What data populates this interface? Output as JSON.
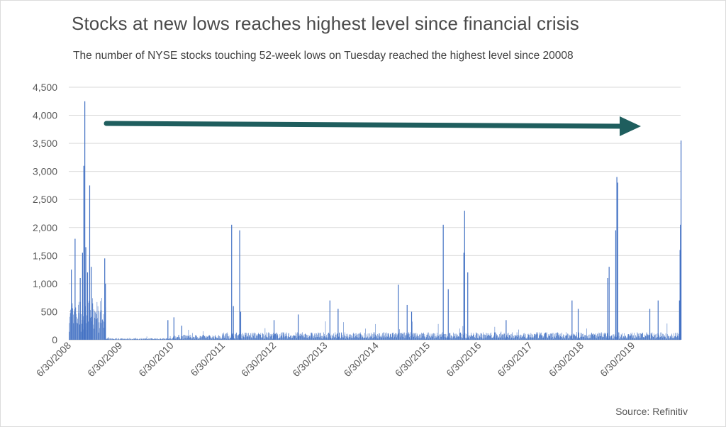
{
  "title": "Stocks at new lows reaches highest level since financial crisis",
  "subtitle": "The number of NYSE stocks touching 52-week lows on Tuesday reached the highest level since 20008",
  "source": "Source: Refinitiv",
  "colors": {
    "bars": "#4472c4",
    "arrow": "#1f5e5e",
    "grid": "#d9d9d9",
    "title": "#4a4a4a"
  },
  "chart_data": {
    "type": "bar",
    "xlabel": "",
    "ylabel": "",
    "ylim": [
      0,
      4500
    ],
    "yticks": [
      0,
      500,
      1000,
      1500,
      2000,
      2500,
      3000,
      3500,
      4000,
      4500
    ],
    "ytick_labels": [
      "0",
      "500",
      "1,000",
      "1,500",
      "2,000",
      "2,500",
      "3,000",
      "3,500",
      "4,000",
      "4,500"
    ],
    "xtick_labels": [
      "6/30/2008",
      "6/30/2009",
      "6/30/2010",
      "6/30/2011",
      "6/30/2012",
      "6/30/2013",
      "6/30/2014",
      "6/30/2015",
      "6/30/2016",
      "6/30/2017",
      "6/30/2018",
      "6/30/2019"
    ],
    "x_range": [
      "2008-06-30",
      "2020-03-10"
    ],
    "grid": true,
    "legend": "none",
    "baseline_level": 90,
    "notable_spikes": [
      {
        "x": "2008-07-15",
        "y": 1250
      },
      {
        "x": "2008-08-10",
        "y": 1800
      },
      {
        "x": "2008-09-15",
        "y": 1100
      },
      {
        "x": "2008-10-01",
        "y": 1550
      },
      {
        "x": "2008-10-10",
        "y": 3100
      },
      {
        "x": "2008-10-17",
        "y": 4250
      },
      {
        "x": "2008-10-24",
        "y": 1650
      },
      {
        "x": "2008-11-05",
        "y": 1200
      },
      {
        "x": "2008-11-20",
        "y": 2750
      },
      {
        "x": "2008-12-01",
        "y": 1300
      },
      {
        "x": "2009-03-05",
        "y": 1450
      },
      {
        "x": "2009-03-10",
        "y": 1000
      },
      {
        "x": "2010-05-20",
        "y": 350
      },
      {
        "x": "2010-07-01",
        "y": 400
      },
      {
        "x": "2010-08-25",
        "y": 250
      },
      {
        "x": "2011-08-08",
        "y": 2050
      },
      {
        "x": "2011-08-20",
        "y": 600
      },
      {
        "x": "2011-10-03",
        "y": 1950
      },
      {
        "x": "2011-10-10",
        "y": 500
      },
      {
        "x": "2012-05-30",
        "y": 350
      },
      {
        "x": "2012-11-15",
        "y": 450
      },
      {
        "x": "2013-06-24",
        "y": 700
      },
      {
        "x": "2013-08-20",
        "y": 550
      },
      {
        "x": "2014-10-15",
        "y": 980
      },
      {
        "x": "2014-12-15",
        "y": 620
      },
      {
        "x": "2015-01-15",
        "y": 500
      },
      {
        "x": "2015-08-24",
        "y": 2050
      },
      {
        "x": "2015-09-28",
        "y": 900
      },
      {
        "x": "2016-01-15",
        "y": 1550
      },
      {
        "x": "2016-01-20",
        "y": 2300
      },
      {
        "x": "2016-02-11",
        "y": 1200
      },
      {
        "x": "2016-11-05",
        "y": 350
      },
      {
        "x": "2018-02-08",
        "y": 700
      },
      {
        "x": "2018-03-23",
        "y": 550
      },
      {
        "x": "2018-10-15",
        "y": 1100
      },
      {
        "x": "2018-10-25",
        "y": 1300
      },
      {
        "x": "2018-12-10",
        "y": 1950
      },
      {
        "x": "2018-12-18",
        "y": 2900
      },
      {
        "x": "2018-12-24",
        "y": 2800
      },
      {
        "x": "2019-08-05",
        "y": 550
      },
      {
        "x": "2019-10-02",
        "y": 700
      },
      {
        "x": "2020-02-28",
        "y": 700
      },
      {
        "x": "2020-03-03",
        "y": 1600
      },
      {
        "x": "2020-03-06",
        "y": 2050
      },
      {
        "x": "2020-03-10",
        "y": 3550
      }
    ]
  }
}
